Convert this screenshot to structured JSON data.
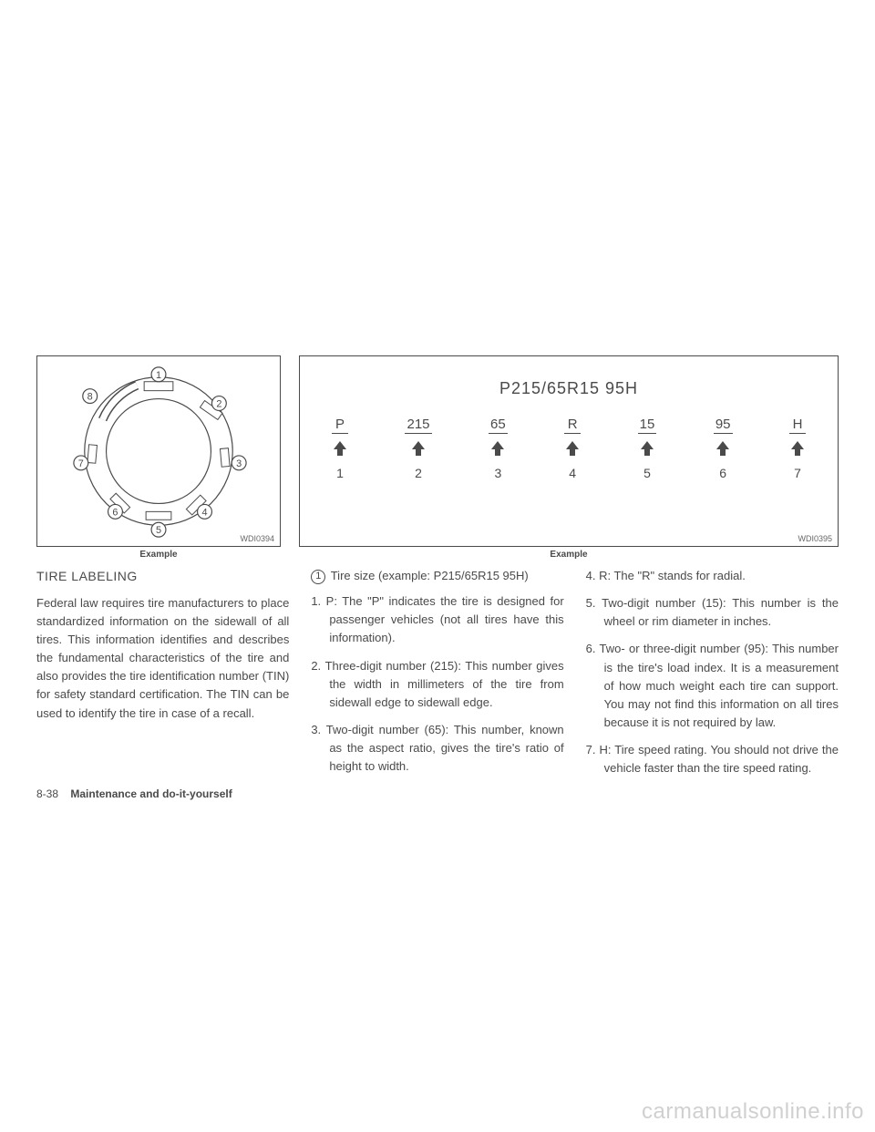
{
  "figure1": {
    "id": "WDI0394",
    "caption": "Example",
    "callouts": [
      "1",
      "2",
      "3",
      "4",
      "5",
      "6",
      "7",
      "8"
    ]
  },
  "figure2": {
    "id": "WDI0395",
    "caption": "Example",
    "title": "P215/65R15  95H",
    "parts": [
      {
        "val": "P",
        "num": "1"
      },
      {
        "val": "215",
        "num": "2"
      },
      {
        "val": "65",
        "num": "3"
      },
      {
        "val": "R",
        "num": "4"
      },
      {
        "val": "15",
        "num": "5"
      },
      {
        "val": "95",
        "num": "6"
      },
      {
        "val": "H",
        "num": "7"
      }
    ]
  },
  "col1": {
    "heading": "TIRE LABELING",
    "para": "Federal law requires tire manufacturers to place standardized information on the sidewall of all tires. This information identifies and describes the fundamental characteristics of the tire and also provides the tire identification number (TIN) for safety standard certification. The TIN can be used to identify the tire in case of a recall."
  },
  "col2": {
    "lead_num": "1",
    "lead": "Tire size (example: P215/65R15 95H)",
    "items": [
      "1.  P: The \"P\" indicates the tire is designed for passenger vehicles (not all tires have this information).",
      "2.  Three-digit number (215): This number gives the width in millimeters of the tire from sidewall edge to sidewall edge.",
      "3.  Two-digit number (65): This number, known as the aspect ratio, gives the tire's ratio of height to width."
    ]
  },
  "col3": {
    "items": [
      "4.  R: The \"R\" stands for radial.",
      "5.  Two-digit number (15): This number is the wheel or rim diameter in inches.",
      "6.  Two- or three-digit number (95): This number is the tire's load index. It is a measurement of how much weight each tire can support. You may not find this information on all tires because it is not required by law.",
      "7.  H: Tire speed rating. You should not drive the vehicle faster than the tire speed rating."
    ]
  },
  "footer": {
    "page": "8-38",
    "section": "Maintenance and do-it-yourself"
  },
  "watermark": "carmanualsonline.info",
  "colors": {
    "text": "#4a4a4a",
    "border": "#4a4a4a",
    "bg": "#ffffff"
  }
}
